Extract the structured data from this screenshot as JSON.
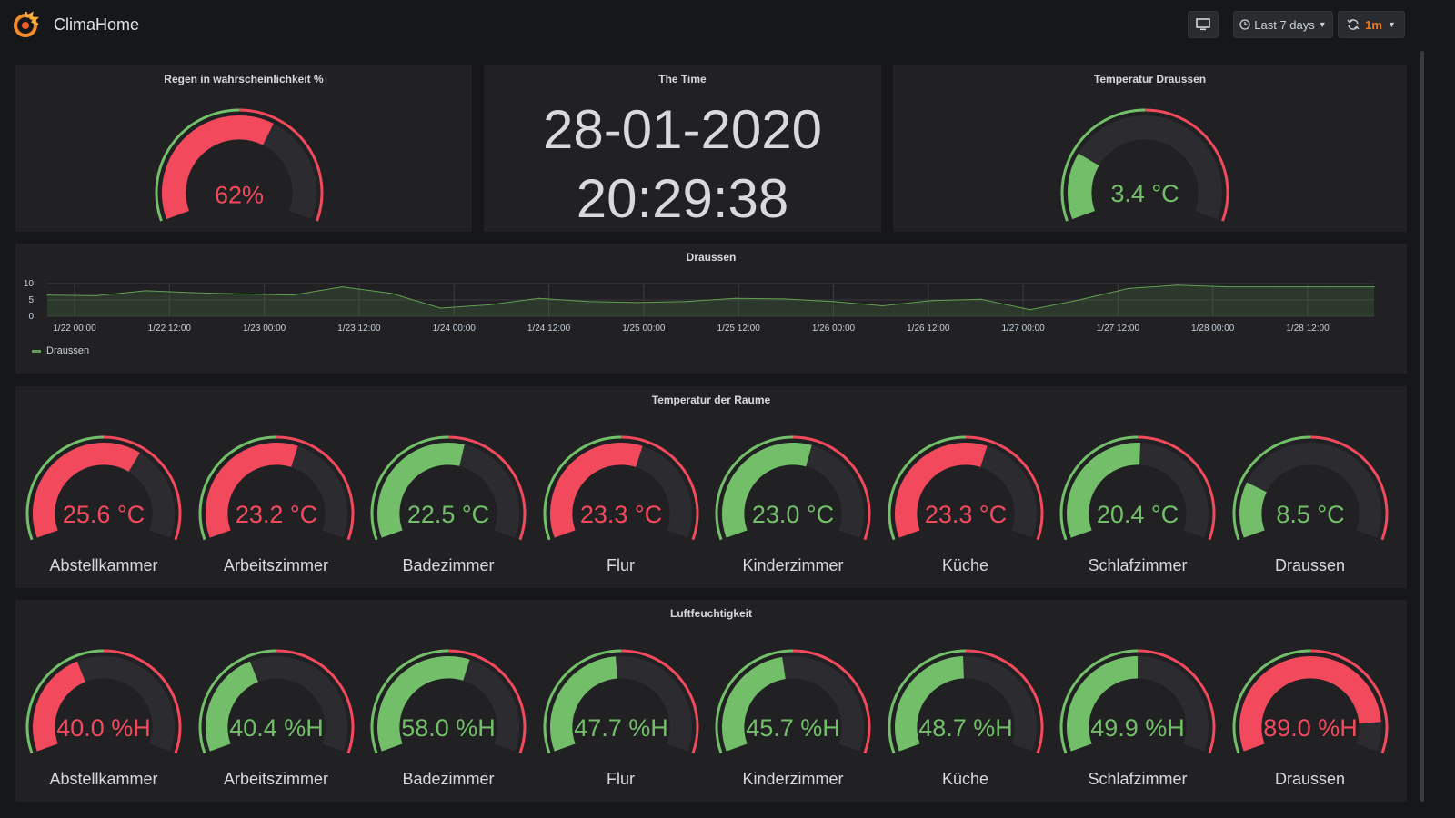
{
  "header": {
    "title": "ClimaHome",
    "time_range": "Last 7 days",
    "refresh_interval": "1m"
  },
  "colors": {
    "red": "#f2495c",
    "green": "#73bf69",
    "track": "#2c2c30",
    "line": "#629e51"
  },
  "rain_panel": {
    "title": "Regen in wahrscheinlichkeit %",
    "value": "62%",
    "fill": 0.62,
    "color": "red"
  },
  "time_panel": {
    "title": "The Time",
    "date": "28-01-2020",
    "time": "20:29:38"
  },
  "outside_temp_panel": {
    "title": "Temperatur Draussen",
    "value": "3.4 °C",
    "fill": 0.23,
    "color": "green"
  },
  "graph_panel": {
    "title": "Draussen",
    "y_ticks": [
      "10",
      "5",
      "0"
    ],
    "x_ticks": [
      "1/22 00:00",
      "1/22 12:00",
      "1/23 00:00",
      "1/23 12:00",
      "1/24 00:00",
      "1/24 12:00",
      "1/25 00:00",
      "1/25 12:00",
      "1/26 00:00",
      "1/26 12:00",
      "1/27 00:00",
      "1/27 12:00",
      "1/28 00:00",
      "1/28 12:00"
    ],
    "legend": "Draussen"
  },
  "chart_data": {
    "type": "area",
    "series": [
      {
        "name": "Draussen",
        "x": [
          "1/22 00:00",
          "1/22 06:00",
          "1/22 12:00",
          "1/22 18:00",
          "1/23 00:00",
          "1/23 06:00",
          "1/23 12:00",
          "1/23 18:00",
          "1/24 00:00",
          "1/24 06:00",
          "1/24 12:00",
          "1/24 18:00",
          "1/25 00:00",
          "1/25 06:00",
          "1/25 12:00",
          "1/25 18:00",
          "1/26 00:00",
          "1/26 06:00",
          "1/26 12:00",
          "1/26 18:00",
          "1/27 00:00",
          "1/27 06:00",
          "1/27 12:00",
          "1/27 18:00",
          "1/28 00:00",
          "1/28 06:00",
          "1/28 12:00",
          "1/28 18:00"
        ],
        "values": [
          6.5,
          6.3,
          7.8,
          7.2,
          6.8,
          6.5,
          9.0,
          7.0,
          2.5,
          3.5,
          5.5,
          4.5,
          4.2,
          4.5,
          5.5,
          5.3,
          4.5,
          3.2,
          4.8,
          5.2,
          2.0,
          5.0,
          8.5,
          9.5,
          9.0,
          9.0,
          9.0,
          9.0
        ]
      }
    ],
    "ylim": [
      0,
      10
    ],
    "grid": true,
    "legend": "bottom-left"
  },
  "temp_panel": {
    "title": "Temperatur der Raume",
    "gauges": [
      {
        "label": "Abstellkammer",
        "value": "25.6 °C",
        "fill": 0.64,
        "color": "red"
      },
      {
        "label": "Arbeitszimmer",
        "value": "23.2 °C",
        "fill": 0.58,
        "color": "red"
      },
      {
        "label": "Badezimmer",
        "value": "22.5 °C",
        "fill": 0.56,
        "color": "green"
      },
      {
        "label": "Flur",
        "value": "23.3 °C",
        "fill": 0.58,
        "color": "red"
      },
      {
        "label": "Kinderzimmer",
        "value": "23.0 °C",
        "fill": 0.57,
        "color": "green"
      },
      {
        "label": "Küche",
        "value": "23.3 °C",
        "fill": 0.58,
        "color": "red"
      },
      {
        "label": "Schlafzimmer",
        "value": "20.4 °C",
        "fill": 0.51,
        "color": "green"
      },
      {
        "label": "Draussen",
        "value": "8.5 °C",
        "fill": 0.21,
        "color": "green"
      }
    ]
  },
  "humidity_panel": {
    "title": "Luftfeuchtigkeit",
    "gauges": [
      {
        "label": "Abstellkammer",
        "value": "40.0 %H",
        "fill": 0.4,
        "color": "red"
      },
      {
        "label": "Arbeitszimmer",
        "value": "40.4 %H",
        "fill": 0.4,
        "color": "green"
      },
      {
        "label": "Badezimmer",
        "value": "58.0 %H",
        "fill": 0.58,
        "color": "green"
      },
      {
        "label": "Flur",
        "value": "47.7 %H",
        "fill": 0.48,
        "color": "green"
      },
      {
        "label": "Kinderzimmer",
        "value": "45.7 %H",
        "fill": 0.46,
        "color": "green"
      },
      {
        "label": "Küche",
        "value": "48.7 %H",
        "fill": 0.49,
        "color": "green"
      },
      {
        "label": "Schlafzimmer",
        "value": "49.9 %H",
        "fill": 0.5,
        "color": "green"
      },
      {
        "label": "Draussen",
        "value": "89.0 %H",
        "fill": 0.89,
        "color": "red"
      }
    ]
  }
}
